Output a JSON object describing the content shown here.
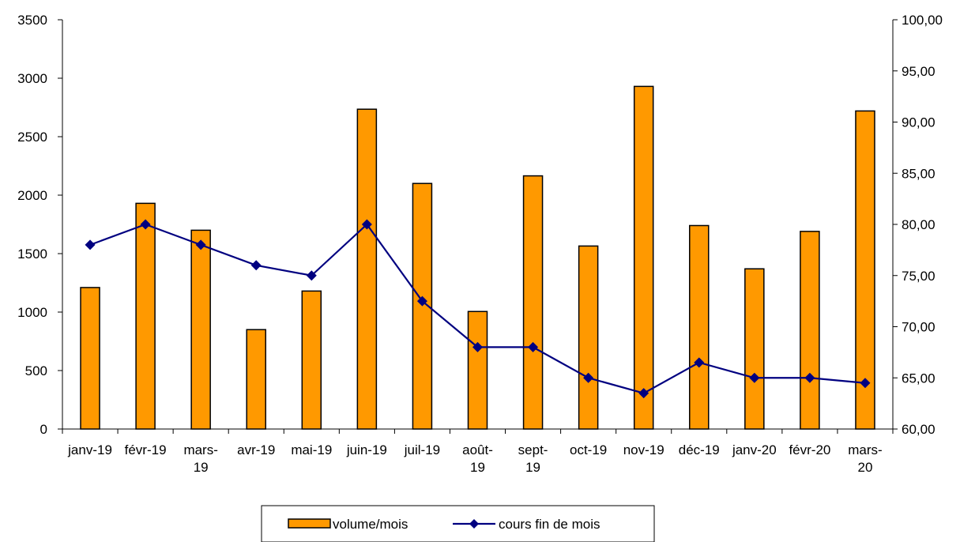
{
  "chart_data": {
    "type": "bar",
    "categories": [
      "janv-19",
      "févr-19",
      "mars-19",
      "avr-19",
      "mai-19",
      "juin-19",
      "juil-19",
      "août-19",
      "sept-19",
      "oct-19",
      "nov-19",
      "déc-19",
      "janv-20",
      "févr-20",
      "mars-20"
    ],
    "category_lines": [
      [
        "janv-19"
      ],
      [
        "févr-19"
      ],
      [
        "mars-",
        "19"
      ],
      [
        "avr-19"
      ],
      [
        "mai-19"
      ],
      [
        "juin-19"
      ],
      [
        "juil-19"
      ],
      [
        "août-",
        "19"
      ],
      [
        "sept-",
        "19"
      ],
      [
        "oct-19"
      ],
      [
        "nov-19"
      ],
      [
        "déc-19"
      ],
      [
        "janv-20"
      ],
      [
        "févr-20"
      ],
      [
        "mars-",
        "20"
      ]
    ],
    "series": [
      {
        "name": "volume/mois",
        "type": "bar",
        "axis": "left",
        "color": "#FF9900",
        "values": [
          1210,
          1930,
          1700,
          850,
          1180,
          2735,
          2100,
          1005,
          2165,
          1565,
          2930,
          1740,
          1370,
          1690,
          2720
        ]
      },
      {
        "name": "cours fin de mois",
        "type": "line",
        "axis": "right",
        "color": "#000080",
        "marker": "diamond",
        "values": [
          78.0,
          80.0,
          78.0,
          76.0,
          75.0,
          80.0,
          72.5,
          68.0,
          68.0,
          65.0,
          63.5,
          66.5,
          65.0,
          65.0,
          64.5
        ]
      }
    ],
    "y_left": {
      "ylim": [
        0,
        3500
      ],
      "ticks": [
        0,
        500,
        1000,
        1500,
        2000,
        2500,
        3000,
        3500
      ],
      "tick_labels": [
        "0",
        "500",
        "1000",
        "1500",
        "2000",
        "2500",
        "3000",
        "3500"
      ]
    },
    "y_right": {
      "ylim": [
        60,
        100
      ],
      "ticks": [
        60,
        65,
        70,
        75,
        80,
        85,
        90,
        95,
        100
      ],
      "tick_labels": [
        "60,00",
        "65,00",
        "70,00",
        "75,00",
        "80,00",
        "85,00",
        "90,00",
        "95,00",
        "100,00"
      ]
    },
    "title": "",
    "xlabel": "",
    "ylabel": "",
    "grid": false,
    "legend_position": "bottom"
  }
}
